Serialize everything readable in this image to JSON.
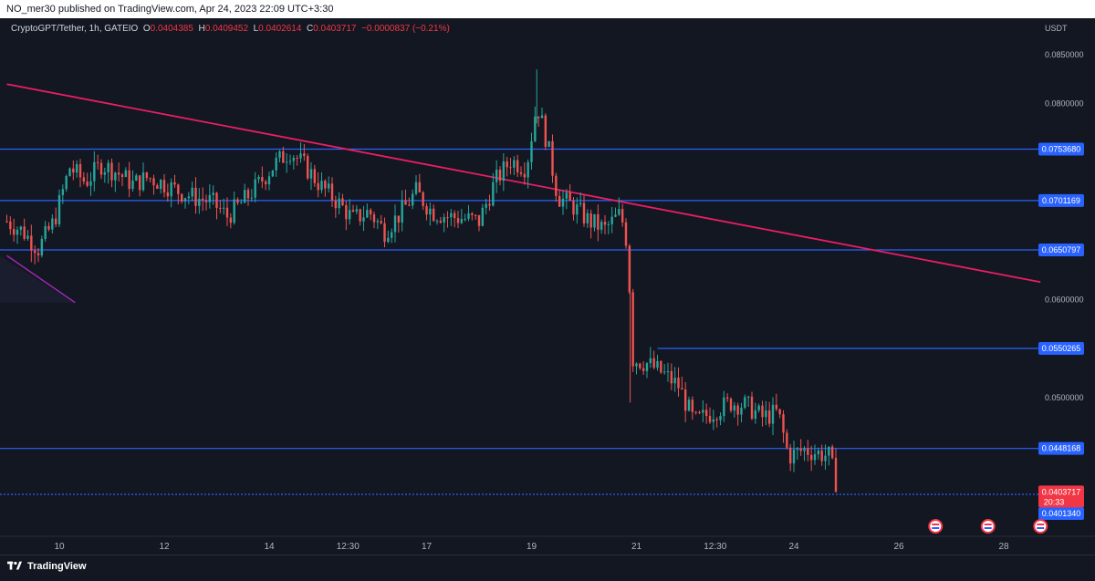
{
  "header": {
    "published_text": "NO_mer30 published on TradingView.com, Apr 24, 2023 22:09 UTC+3:30"
  },
  "legend": {
    "symbol": "CryptoGPT/Tether, 1h, GATEIO",
    "o_label": "O",
    "o_value": "0.0404385",
    "h_label": "H",
    "h_value": "0.0409452",
    "l_label": "L",
    "l_value": "0.0402614",
    "c_label": "C",
    "c_value": "0.0403717",
    "change": "−0.0000837 (−0.21%)"
  },
  "footer": {
    "brand": "TradingView"
  },
  "colors": {
    "background": "#131722",
    "up": "#26a69a",
    "down": "#ef5350",
    "hline": "#2962ff",
    "trendline": "#e91e63",
    "purple_line": "#9c27b0",
    "axis_text": "#b2b5be"
  },
  "chart_data": {
    "type": "candlestick",
    "title": "CryptoGPT/Tether, 1h, GATEIO",
    "currency_label": "USDT",
    "ylim": [
      0.0385,
      0.087
    ],
    "y_ticks": [
      "0.0850000",
      "0.0800000",
      "0.0600000",
      "0.0500000"
    ],
    "x_ticks": [
      "10",
      "12",
      "14",
      "12:30",
      "17",
      "19",
      "21",
      "12:30",
      "24",
      "26",
      "28"
    ],
    "horizontal_levels": [
      {
        "label": "0.0753680",
        "value": 0.075368
      },
      {
        "label": "0.0701169",
        "value": 0.0701169
      },
      {
        "label": "0.0650797",
        "value": 0.0650797
      },
      {
        "label": "0.0550265",
        "value": 0.0550265,
        "from_x_tick": "21"
      },
      {
        "label": "0.0448168",
        "value": 0.0448168
      },
      {
        "label": "0.0401340",
        "value": 0.040134
      }
    ],
    "current_price": {
      "label": "0.0403717",
      "value": 0.0403717,
      "countdown": "20:33"
    },
    "trendline": {
      "start": {
        "day": 9.0,
        "value": 0.082
      },
      "end": {
        "day": 28.7,
        "value": 0.0618
      }
    },
    "purple_line": {
      "start": {
        "day": 9.0,
        "value": 0.0645
      },
      "end": {
        "day": 10.3,
        "value": 0.0597
      }
    },
    "price_path": [
      [
        9.0,
        0.068
      ],
      [
        9.3,
        0.067
      ],
      [
        9.6,
        0.0652
      ],
      [
        9.9,
        0.068
      ],
      [
        10.2,
        0.0735
      ],
      [
        10.5,
        0.072
      ],
      [
        10.8,
        0.0738
      ],
      [
        11.1,
        0.073
      ],
      [
        11.4,
        0.0718
      ],
      [
        11.7,
        0.0725
      ],
      [
        12.0,
        0.0718
      ],
      [
        12.3,
        0.071
      ],
      [
        12.6,
        0.0704
      ],
      [
        12.9,
        0.07
      ],
      [
        13.2,
        0.0685
      ],
      [
        13.5,
        0.07
      ],
      [
        13.8,
        0.0718
      ],
      [
        14.1,
        0.0738
      ],
      [
        14.4,
        0.0752
      ],
      [
        14.7,
        0.0735
      ],
      [
        15.0,
        0.0715
      ],
      [
        15.3,
        0.07
      ],
      [
        15.6,
        0.0682
      ],
      [
        15.9,
        0.069
      ],
      [
        16.2,
        0.067
      ],
      [
        16.5,
        0.0688
      ],
      [
        16.8,
        0.071
      ],
      [
        17.1,
        0.069
      ],
      [
        17.4,
        0.0685
      ],
      [
        17.7,
        0.0683
      ],
      [
        18.0,
        0.068
      ],
      [
        18.3,
        0.072
      ],
      [
        18.6,
        0.0742
      ],
      [
        18.9,
        0.0735
      ],
      [
        19.1,
        0.08
      ],
      [
        19.3,
        0.076
      ],
      [
        19.5,
        0.0705
      ],
      [
        19.8,
        0.0695
      ],
      [
        20.1,
        0.068
      ],
      [
        20.4,
        0.0672
      ],
      [
        20.7,
        0.0688
      ],
      [
        20.85,
        0.065
      ],
      [
        20.9,
        0.054
      ],
      [
        21.2,
        0.0535
      ],
      [
        21.5,
        0.0525
      ],
      [
        21.8,
        0.0512
      ],
      [
        22.1,
        0.0475
      ],
      [
        22.5,
        0.0487
      ],
      [
        22.8,
        0.0495
      ],
      [
        23.1,
        0.0492
      ],
      [
        23.4,
        0.048
      ],
      [
        23.7,
        0.0485
      ],
      [
        23.9,
        0.044
      ],
      [
        24.2,
        0.0447
      ],
      [
        24.5,
        0.0443
      ],
      [
        24.7,
        0.044
      ],
      [
        24.8,
        0.0404
      ]
    ],
    "event_markers": [
      26.7,
      27.7,
      28.7
    ]
  }
}
